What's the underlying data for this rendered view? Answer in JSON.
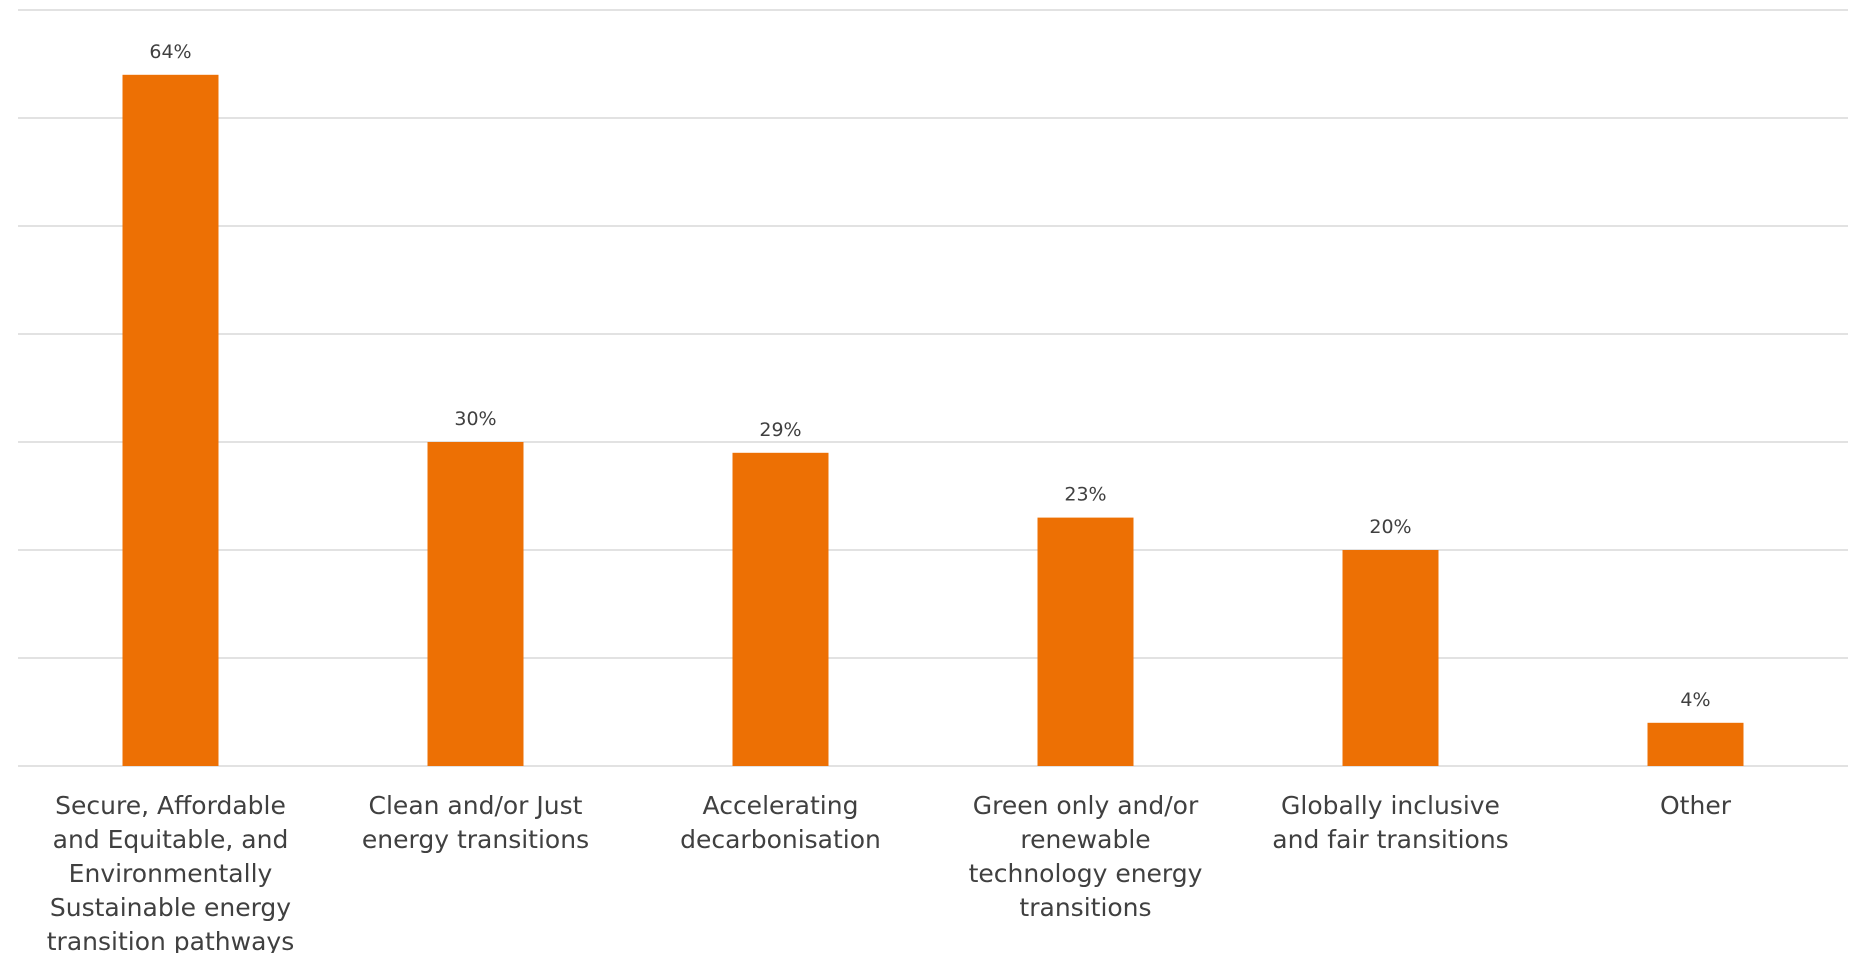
{
  "chart_data": {
    "type": "bar",
    "categories": [
      "Secure, Affordable and Equitable, and Environmentally Sustainable energy transition pathways",
      "Clean and/or Just energy transitions",
      "Accelerating decarbonisation",
      "Green only and/or renewable technology energy transitions",
      "Globally inclusive and fair transitions",
      "Other"
    ],
    "category_label_lines": [
      [
        "Secure, Affordable",
        "and Equitable, and",
        "Environmentally",
        "Sustainable energy",
        "transition pathways"
      ],
      [
        "Clean and/or Just",
        "energy transitions"
      ],
      [
        "Accelerating",
        "decarbonisation"
      ],
      [
        "Green only and/or",
        "renewable",
        "technology energy",
        "transitions"
      ],
      [
        "Globally inclusive",
        "and fair transitions"
      ],
      [
        "Other"
      ]
    ],
    "values": [
      64,
      30,
      29,
      23,
      20,
      4
    ],
    "data_labels": [
      "64%",
      "30%",
      "29%",
      "23%",
      "20%",
      "4%"
    ],
    "ylim": [
      0,
      70
    ],
    "ytick_step": 10,
    "grid": true,
    "axis_labels_visible": false,
    "bar_color": "#ED7004",
    "grid_color": "#D9D9D9",
    "text_color": "#404040"
  }
}
